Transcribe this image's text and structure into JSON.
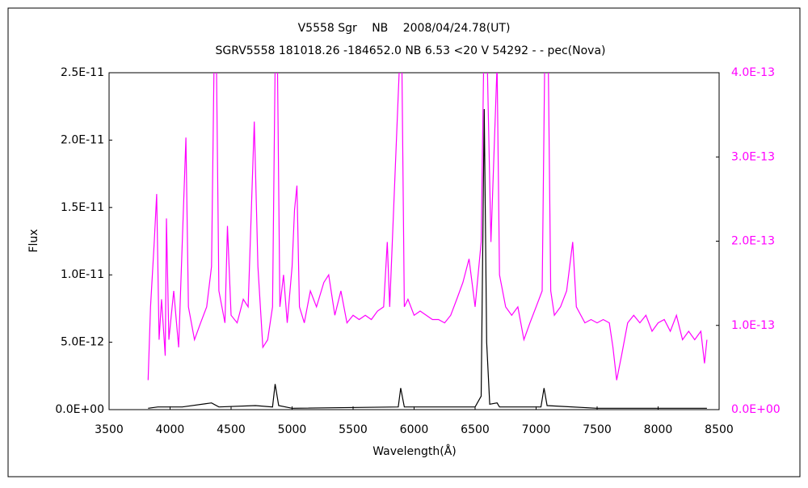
{
  "chart_data": {
    "type": "line",
    "title": "V5558 Sgr　 NB　 2008/04/24.78(UT)",
    "subtitle": "SGRV5558 181018.26 -184652.0 NB 6.53 <20 V 54292 - - pec(Nova)",
    "x_label": "Wavelength(Å)",
    "y_label": "Flux",
    "xlim": [
      3500,
      8500
    ],
    "xticks": [
      3500,
      4000,
      4500,
      5000,
      5500,
      6000,
      6500,
      7000,
      7500,
      8000,
      8500
    ],
    "ylim": [
      0,
      2.5e-11
    ],
    "yticks": [
      {
        "value": 0,
        "label": "0.0E+00"
      },
      {
        "value": 5e-12,
        "label": "5.0E-12"
      },
      {
        "value": 1e-11,
        "label": "1.0E-11"
      },
      {
        "value": 1.5e-11,
        "label": "1.5E-11"
      },
      {
        "value": 2e-11,
        "label": "2.0E-11"
      },
      {
        "value": 2.5e-11,
        "label": "2.5E-11"
      }
    ],
    "y2lim": [
      0,
      4e-13
    ],
    "y2ticks": [
      {
        "value": 0,
        "label": "0.0E+00"
      },
      {
        "value": 1e-13,
        "label": "1.0E-13"
      },
      {
        "value": 2e-13,
        "label": "2.0E-13"
      },
      {
        "value": 3e-13,
        "label": "3.0E-13"
      },
      {
        "value": 4e-13,
        "label": "4.0E-13"
      }
    ],
    "y2_color": "#ff00ff",
    "series": [
      {
        "color": "#000000",
        "x": [
          3820,
          3900,
          4100,
          4340,
          4400,
          4700,
          4840,
          4861,
          4890,
          5000,
          5870,
          5890,
          5920,
          6500,
          6550,
          6575,
          6595,
          6620,
          6680,
          6700,
          7040,
          7065,
          7090,
          7500,
          8400
        ],
        "values": [
          1e-13,
          2e-13,
          2e-13,
          5e-13,
          2e-13,
          3e-13,
          2e-13,
          1.9e-12,
          3e-13,
          1e-13,
          2e-13,
          1.6e-12,
          2e-13,
          2e-13,
          1e-12,
          2.23e-11,
          5e-12,
          4e-13,
          5e-13,
          2e-13,
          2e-13,
          1.6e-12,
          3e-13,
          1e-13,
          1e-13
        ]
      },
      {
        "color": "#ff00ff",
        "axis": "y2",
        "x": [
          3820,
          3840,
          3870,
          3890,
          3910,
          3930,
          3960,
          3970,
          3990,
          4030,
          4070,
          4100,
          4130,
          4150,
          4200,
          4250,
          4300,
          4340,
          4360,
          4380,
          4400,
          4450,
          4470,
          4500,
          4550,
          4600,
          4640,
          4690,
          4720,
          4760,
          4800,
          4840,
          4861,
          4880,
          4900,
          4930,
          4960,
          5000,
          5020,
          5040,
          5060,
          5100,
          5150,
          5200,
          5260,
          5300,
          5350,
          5400,
          5450,
          5500,
          5550,
          5600,
          5650,
          5700,
          5750,
          5780,
          5800,
          5880,
          5900,
          5920,
          5950,
          6000,
          6050,
          6100,
          6150,
          6200,
          6250,
          6300,
          6350,
          6400,
          6450,
          6500,
          6550,
          6570,
          6600,
          6630,
          6680,
          6700,
          6750,
          6800,
          6850,
          6900,
          6950,
          7000,
          7050,
          7070,
          7100,
          7120,
          7150,
          7200,
          7250,
          7300,
          7330,
          7400,
          7450,
          7500,
          7550,
          7600,
          7630,
          7660,
          7700,
          7750,
          7800,
          7850,
          7900,
          7950,
          8000,
          8050,
          8100,
          8150,
          8200,
          8250,
          8300,
          8350,
          8380,
          8400
        ],
        "values": [
          3.5e-14,
          1.22e-13,
          1.99e-13,
          2.56e-13,
          8.3e-14,
          1.31e-13,
          6.4e-14,
          2.27e-13,
          8.3e-14,
          1.41e-13,
          7.4e-14,
          1.99e-13,
          3.23e-13,
          1.22e-13,
          8.3e-14,
          1.03e-13,
          1.22e-13,
          1.7e-13,
          4.1e-13,
          4.1e-13,
          1.41e-13,
          1.03e-13,
          2.18e-13,
          1.12e-13,
          1.03e-13,
          1.31e-13,
          1.22e-13,
          3.42e-13,
          1.7e-13,
          7.4e-14,
          8.3e-14,
          1.22e-13,
          4.1e-13,
          4.1e-13,
          1.22e-13,
          1.6e-13,
          1.03e-13,
          1.7e-13,
          2.37e-13,
          2.66e-13,
          1.22e-13,
          1.03e-13,
          1.41e-13,
          1.22e-13,
          1.51e-13,
          1.6e-13,
          1.12e-13,
          1.41e-13,
          1.03e-13,
          1.12e-13,
          1.07e-13,
          1.12e-13,
          1.07e-13,
          1.17e-13,
          1.22e-13,
          1.99e-13,
          1.22e-13,
          4.1e-13,
          4.1e-13,
          1.22e-13,
          1.31e-13,
          1.12e-13,
          1.17e-13,
          1.12e-13,
          1.07e-13,
          1.07e-13,
          1.03e-13,
          1.12e-13,
          1.31e-13,
          1.51e-13,
          1.79e-13,
          1.22e-13,
          1.99e-13,
          4.1e-13,
          4.1e-13,
          1.99e-13,
          4.1e-13,
          1.6e-13,
          1.22e-13,
          1.12e-13,
          1.22e-13,
          8.3e-14,
          1.03e-13,
          1.22e-13,
          1.41e-13,
          4.1e-13,
          4.1e-13,
          1.41e-13,
          1.12e-13,
          1.22e-13,
          1.41e-13,
          1.99e-13,
          1.22e-13,
          1.03e-13,
          1.07e-13,
          1.03e-13,
          1.07e-13,
          1.03e-13,
          7.4e-14,
          3.5e-14,
          6.4e-14,
          1.03e-13,
          1.12e-13,
          1.03e-13,
          1.12e-13,
          9.3e-14,
          1.03e-13,
          1.07e-13,
          9.3e-14,
          1.12e-13,
          8.3e-14,
          9.3e-14,
          8.3e-14,
          9.3e-14,
          5.5e-14,
          8.3e-14
        ]
      }
    ]
  }
}
